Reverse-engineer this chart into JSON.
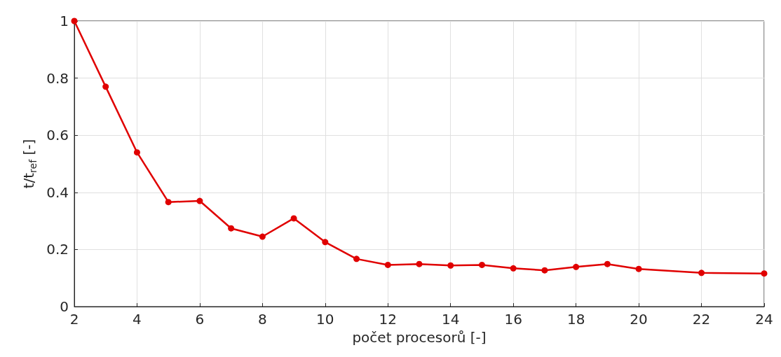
{
  "chart_data": {
    "type": "line",
    "xlabel": "počet procesorů [-]",
    "ylabel": "t/t$_{ref}$ [-]",
    "x": [
      2,
      3,
      4,
      5,
      6,
      7,
      8,
      9,
      10,
      11,
      12,
      13,
      14,
      15,
      16,
      17,
      18,
      19,
      20,
      22,
      24
    ],
    "series": [
      {
        "color": "#e00000",
        "values": [
          1.0,
          0.77,
          0.54,
          0.366,
          0.37,
          0.274,
          0.245,
          0.309,
          0.226,
          0.167,
          0.146,
          0.149,
          0.144,
          0.146,
          0.134,
          0.127,
          0.139,
          0.149,
          0.132,
          0.118,
          0.116
        ]
      }
    ],
    "xlim": [
      2,
      24
    ],
    "xticks": [
      2,
      4,
      6,
      8,
      10,
      12,
      14,
      16,
      18,
      20,
      22,
      24
    ],
    "ylim": [
      0,
      1
    ],
    "yticks": [
      0,
      0.2,
      0.4,
      0.6,
      0.8,
      1
    ],
    "grid": true,
    "marker": "circle",
    "line_style": "solid"
  }
}
